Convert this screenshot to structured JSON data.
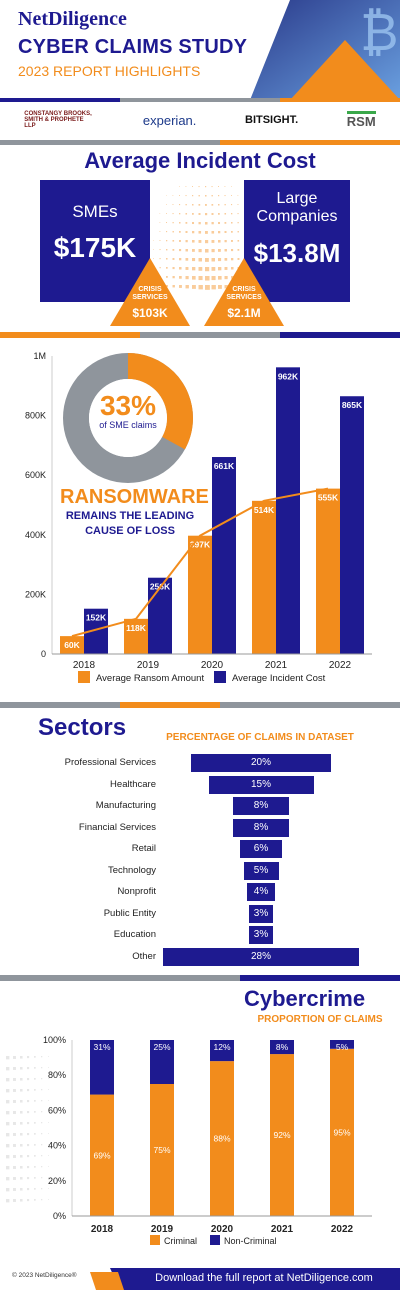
{
  "header": {
    "brand": "NetDiligence",
    "title": "CYBER CLAIMS STUDY",
    "subtitle": "2023 REPORT HIGHLIGHTS"
  },
  "logos": [
    "CONSTANGY BROOKS, SMITH & PROPHETE LLP",
    "experian.",
    "BITSIGHT.",
    "RSM"
  ],
  "cost": {
    "title": "Average Incident Cost",
    "sme_label": "SMEs",
    "sme_value": "$175K",
    "large_label": "Large Companies",
    "large_value": "$13.8M",
    "crisis_label": "CRISIS SERVICES",
    "sme_crisis": "$103K",
    "large_crisis": "$2.1M"
  },
  "ransomware": {
    "donut_value": "33%",
    "donut_caption": "of SME claims",
    "headline": "RANSOMWARE",
    "subline1": "REMAINS THE LEADING",
    "subline2": "CAUSE OF LOSS"
  },
  "sectors": {
    "title": "Sectors",
    "subtitle": "PERCENTAGE OF CLAIMS IN DATASET"
  },
  "cybercrime": {
    "title": "Cybercrime",
    "subtitle": "PROPORTION OF CLAIMS"
  },
  "footer": {
    "copyright": "© 2023 NetDiligence®",
    "cta": "Download the full report at NetDiligence.com"
  },
  "colors": {
    "navy": "#1e1a90",
    "orange": "#f28c1c",
    "gray": "#8f959c"
  },
  "chart_data": [
    {
      "type": "bar",
      "categories": [
        "2018",
        "2019",
        "2020",
        "2021",
        "2022"
      ],
      "series": [
        {
          "name": "Average Ransom Amount",
          "values": [
            60,
            118,
            397,
            514,
            555
          ],
          "labels": [
            "60K",
            "118K",
            "397K",
            "514K",
            "555K"
          ],
          "color": "#f28c1c"
        },
        {
          "name": "Average Incident Cost",
          "values": [
            152,
            256,
            661,
            962,
            865
          ],
          "labels": [
            "152K",
            "256K",
            "661K",
            "962K",
            "865K"
          ],
          "color": "#1e1a90"
        }
      ],
      "line_series": "Average Ransom Amount",
      "yticks": [
        "0",
        "200K",
        "400K",
        "600K",
        "800K",
        "1M"
      ],
      "ylim": [
        0,
        1000
      ]
    },
    {
      "type": "bar",
      "orientation": "horizontal",
      "title": "PERCENTAGE OF CLAIMS IN DATASET",
      "categories": [
        "Professional Services",
        "Healthcare",
        "Manufacturing",
        "Financial Services",
        "Retail",
        "Technology",
        "Nonprofit",
        "Public Entity",
        "Education",
        "Other"
      ],
      "values": [
        20,
        15,
        8,
        8,
        6,
        5,
        4,
        3,
        3,
        28
      ],
      "labels": [
        "20%",
        "15%",
        "8%",
        "8%",
        "6%",
        "5%",
        "4%",
        "3%",
        "3%",
        "28%"
      ]
    },
    {
      "type": "bar",
      "stacked": true,
      "title": "PROPORTION OF CLAIMS",
      "categories": [
        "2018",
        "2019",
        "2020",
        "2021",
        "2022"
      ],
      "series": [
        {
          "name": "Criminal",
          "values": [
            69,
            75,
            88,
            92,
            95
          ],
          "labels": [
            "69%",
            "75%",
            "88%",
            "92%",
            "95%"
          ],
          "color": "#f28c1c"
        },
        {
          "name": "Non-Criminal",
          "values": [
            31,
            25,
            12,
            8,
            5
          ],
          "labels": [
            "31%",
            "25%",
            "12%",
            "8%",
            "5%"
          ],
          "color": "#1e1a90"
        }
      ],
      "yticks": [
        "0%",
        "20%",
        "40%",
        "60%",
        "80%",
        "100%"
      ],
      "ylim": [
        0,
        100
      ]
    }
  ]
}
